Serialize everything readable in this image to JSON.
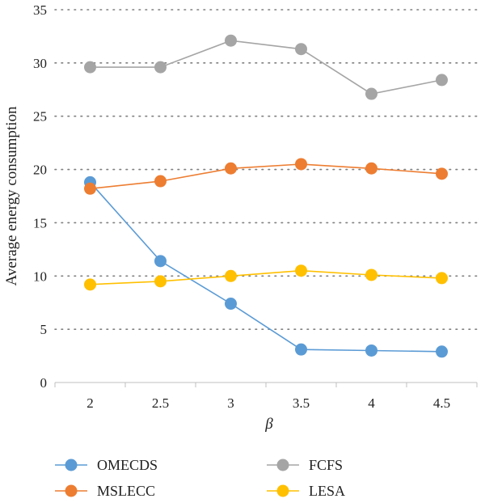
{
  "chart_data": {
    "type": "line",
    "title": "",
    "xlabel": "β",
    "ylabel": "Average energy consumption",
    "x": [
      "2",
      "2.5",
      "3",
      "3.5",
      "4",
      "4.5"
    ],
    "ylim": [
      0,
      35
    ],
    "yticks": [
      0,
      5,
      10,
      15,
      20,
      25,
      30,
      35
    ],
    "grid": "horizontal dotted",
    "legend": "bottom",
    "series": [
      {
        "name": "OMECDS",
        "color": "#5b9bd5",
        "values": [
          18.8,
          11.4,
          7.4,
          3.1,
          3.0,
          2.9
        ]
      },
      {
        "name": "MSLECC",
        "color": "#ed7d31",
        "values": [
          18.2,
          18.9,
          20.1,
          20.5,
          20.1,
          19.6
        ]
      },
      {
        "name": "FCFS",
        "color": "#a5a5a5",
        "values": [
          29.6,
          29.6,
          32.1,
          31.3,
          27.1,
          28.4
        ]
      },
      {
        "name": "LESA",
        "color": "#ffc000",
        "values": [
          9.2,
          9.5,
          10.0,
          10.5,
          10.1,
          9.8
        ]
      }
    ]
  }
}
